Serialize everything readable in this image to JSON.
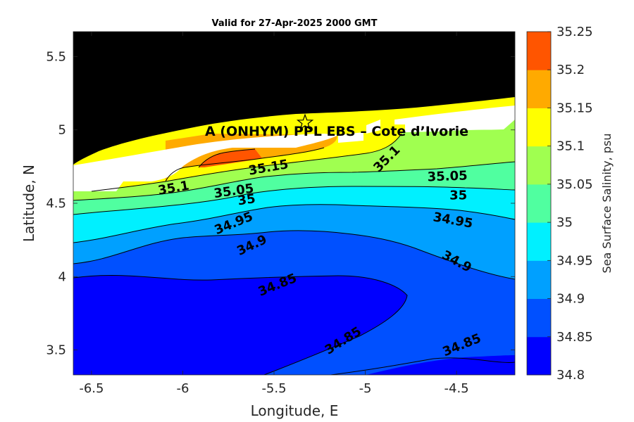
{
  "chart_data": {
    "type": "contour",
    "title": "Valid for 27-Apr-2025 2000 GMT",
    "xlabel": "Longitude, E",
    "ylabel": "Latitude, N",
    "xlim": [
      -6.6,
      -4.18
    ],
    "ylim": [
      3.33,
      5.67
    ],
    "xticks": [
      "-6.5",
      "-6",
      "-5.5",
      "-5",
      "-4.5"
    ],
    "yticks": [
      "3.5",
      "4",
      "4.5",
      "5",
      "5.5"
    ],
    "colorbar": {
      "label": "Sea Surface Salinity, psu",
      "levels": [
        "34.8",
        "34.85",
        "34.9",
        "34.95",
        "35",
        "35.05",
        "35.1",
        "35.15",
        "35.2",
        "35.25"
      ],
      "colors": [
        "#0000ff",
        "#0050ff",
        "#00a0ff",
        "#00f0ff",
        "#50ffa0",
        "#a0ff50",
        "#ffff00",
        "#ffaa00",
        "#ff5500"
      ]
    },
    "grid": false,
    "land_color": "#000000",
    "annotation": "A (ONHYM) PPL EBS  – Cote d’Ivorie",
    "marker": {
      "symbol": "star",
      "lon": -5.33,
      "lat": 5.05
    },
    "contour_labels": [
      {
        "text": "35.15",
        "lon": -5.53,
        "lat": 4.74,
        "angle": -10
      },
      {
        "text": "35.1",
        "lon": -4.88,
        "lat": 4.8,
        "angle": -45
      },
      {
        "text": "35.1",
        "lon": -6.05,
        "lat": 4.6,
        "angle": -10
      },
      {
        "text": "35.05",
        "lon": -5.72,
        "lat": 4.58,
        "angle": -8
      },
      {
        "text": "35.05",
        "lon": -4.55,
        "lat": 4.68,
        "angle": -2
      },
      {
        "text": "35",
        "lon": -5.65,
        "lat": 4.52,
        "angle": -8
      },
      {
        "text": "35",
        "lon": -4.49,
        "lat": 4.55,
        "angle": 0
      },
      {
        "text": "34.95",
        "lon": -5.72,
        "lat": 4.36,
        "angle": -22
      },
      {
        "text": "34.95",
        "lon": -4.52,
        "lat": 4.38,
        "angle": 10
      },
      {
        "text": "34.9",
        "lon": -5.62,
        "lat": 4.21,
        "angle": -25
      },
      {
        "text": "34.9",
        "lon": -4.5,
        "lat": 4.1,
        "angle": 28
      },
      {
        "text": "34.85",
        "lon": -5.48,
        "lat": 3.94,
        "angle": -22
      },
      {
        "text": "34.85",
        "lon": -5.12,
        "lat": 3.56,
        "angle": -32
      },
      {
        "text": "34.85",
        "lon": -4.47,
        "lat": 3.53,
        "angle": -22
      }
    ]
  }
}
